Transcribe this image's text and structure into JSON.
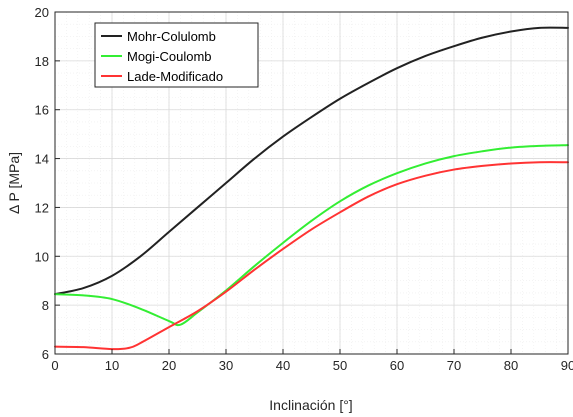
{
  "chart_data": {
    "type": "line",
    "title": "",
    "xlabel": "Inclinación [°]",
    "ylabel": "Δ P [MPa]",
    "xlim": [
      0,
      90
    ],
    "ylim": [
      6,
      20
    ],
    "xticks": [
      0,
      10,
      20,
      30,
      40,
      50,
      60,
      70,
      80,
      90
    ],
    "yticks": [
      6,
      8,
      10,
      12,
      14,
      16,
      18,
      20
    ],
    "grid": true,
    "minor_grid": true,
    "legend_position": "top-left",
    "series": [
      {
        "name": "Mohr-Colulomb",
        "color": "#222222",
        "x": [
          0,
          5,
          10,
          15,
          20,
          25,
          30,
          35,
          40,
          45,
          50,
          55,
          60,
          65,
          70,
          75,
          80,
          85,
          90
        ],
        "y": [
          8.45,
          8.7,
          9.2,
          10.0,
          11.0,
          12.0,
          13.0,
          14.0,
          14.9,
          15.7,
          16.45,
          17.1,
          17.7,
          18.2,
          18.6,
          18.95,
          19.2,
          19.35,
          19.35
        ]
      },
      {
        "name": "Mogi-Coulomb",
        "color": "#33ee33",
        "x": [
          0,
          5,
          10,
          15,
          20,
          22,
          25,
          30,
          35,
          40,
          45,
          50,
          55,
          60,
          65,
          70,
          75,
          80,
          85,
          90
        ],
        "y": [
          8.45,
          8.4,
          8.25,
          7.85,
          7.35,
          7.2,
          7.7,
          8.6,
          9.6,
          10.55,
          11.45,
          12.25,
          12.9,
          13.4,
          13.8,
          14.1,
          14.3,
          14.45,
          14.52,
          14.55
        ]
      },
      {
        "name": "Lade-Modificado",
        "color": "#ff3333",
        "x": [
          0,
          5,
          10,
          13,
          15,
          20,
          25,
          30,
          35,
          40,
          45,
          50,
          55,
          60,
          65,
          70,
          75,
          80,
          85,
          90
        ],
        "y": [
          6.3,
          6.28,
          6.2,
          6.25,
          6.45,
          7.1,
          7.75,
          8.55,
          9.45,
          10.3,
          11.1,
          11.8,
          12.45,
          12.95,
          13.3,
          13.55,
          13.7,
          13.8,
          13.85,
          13.85
        ]
      }
    ]
  }
}
